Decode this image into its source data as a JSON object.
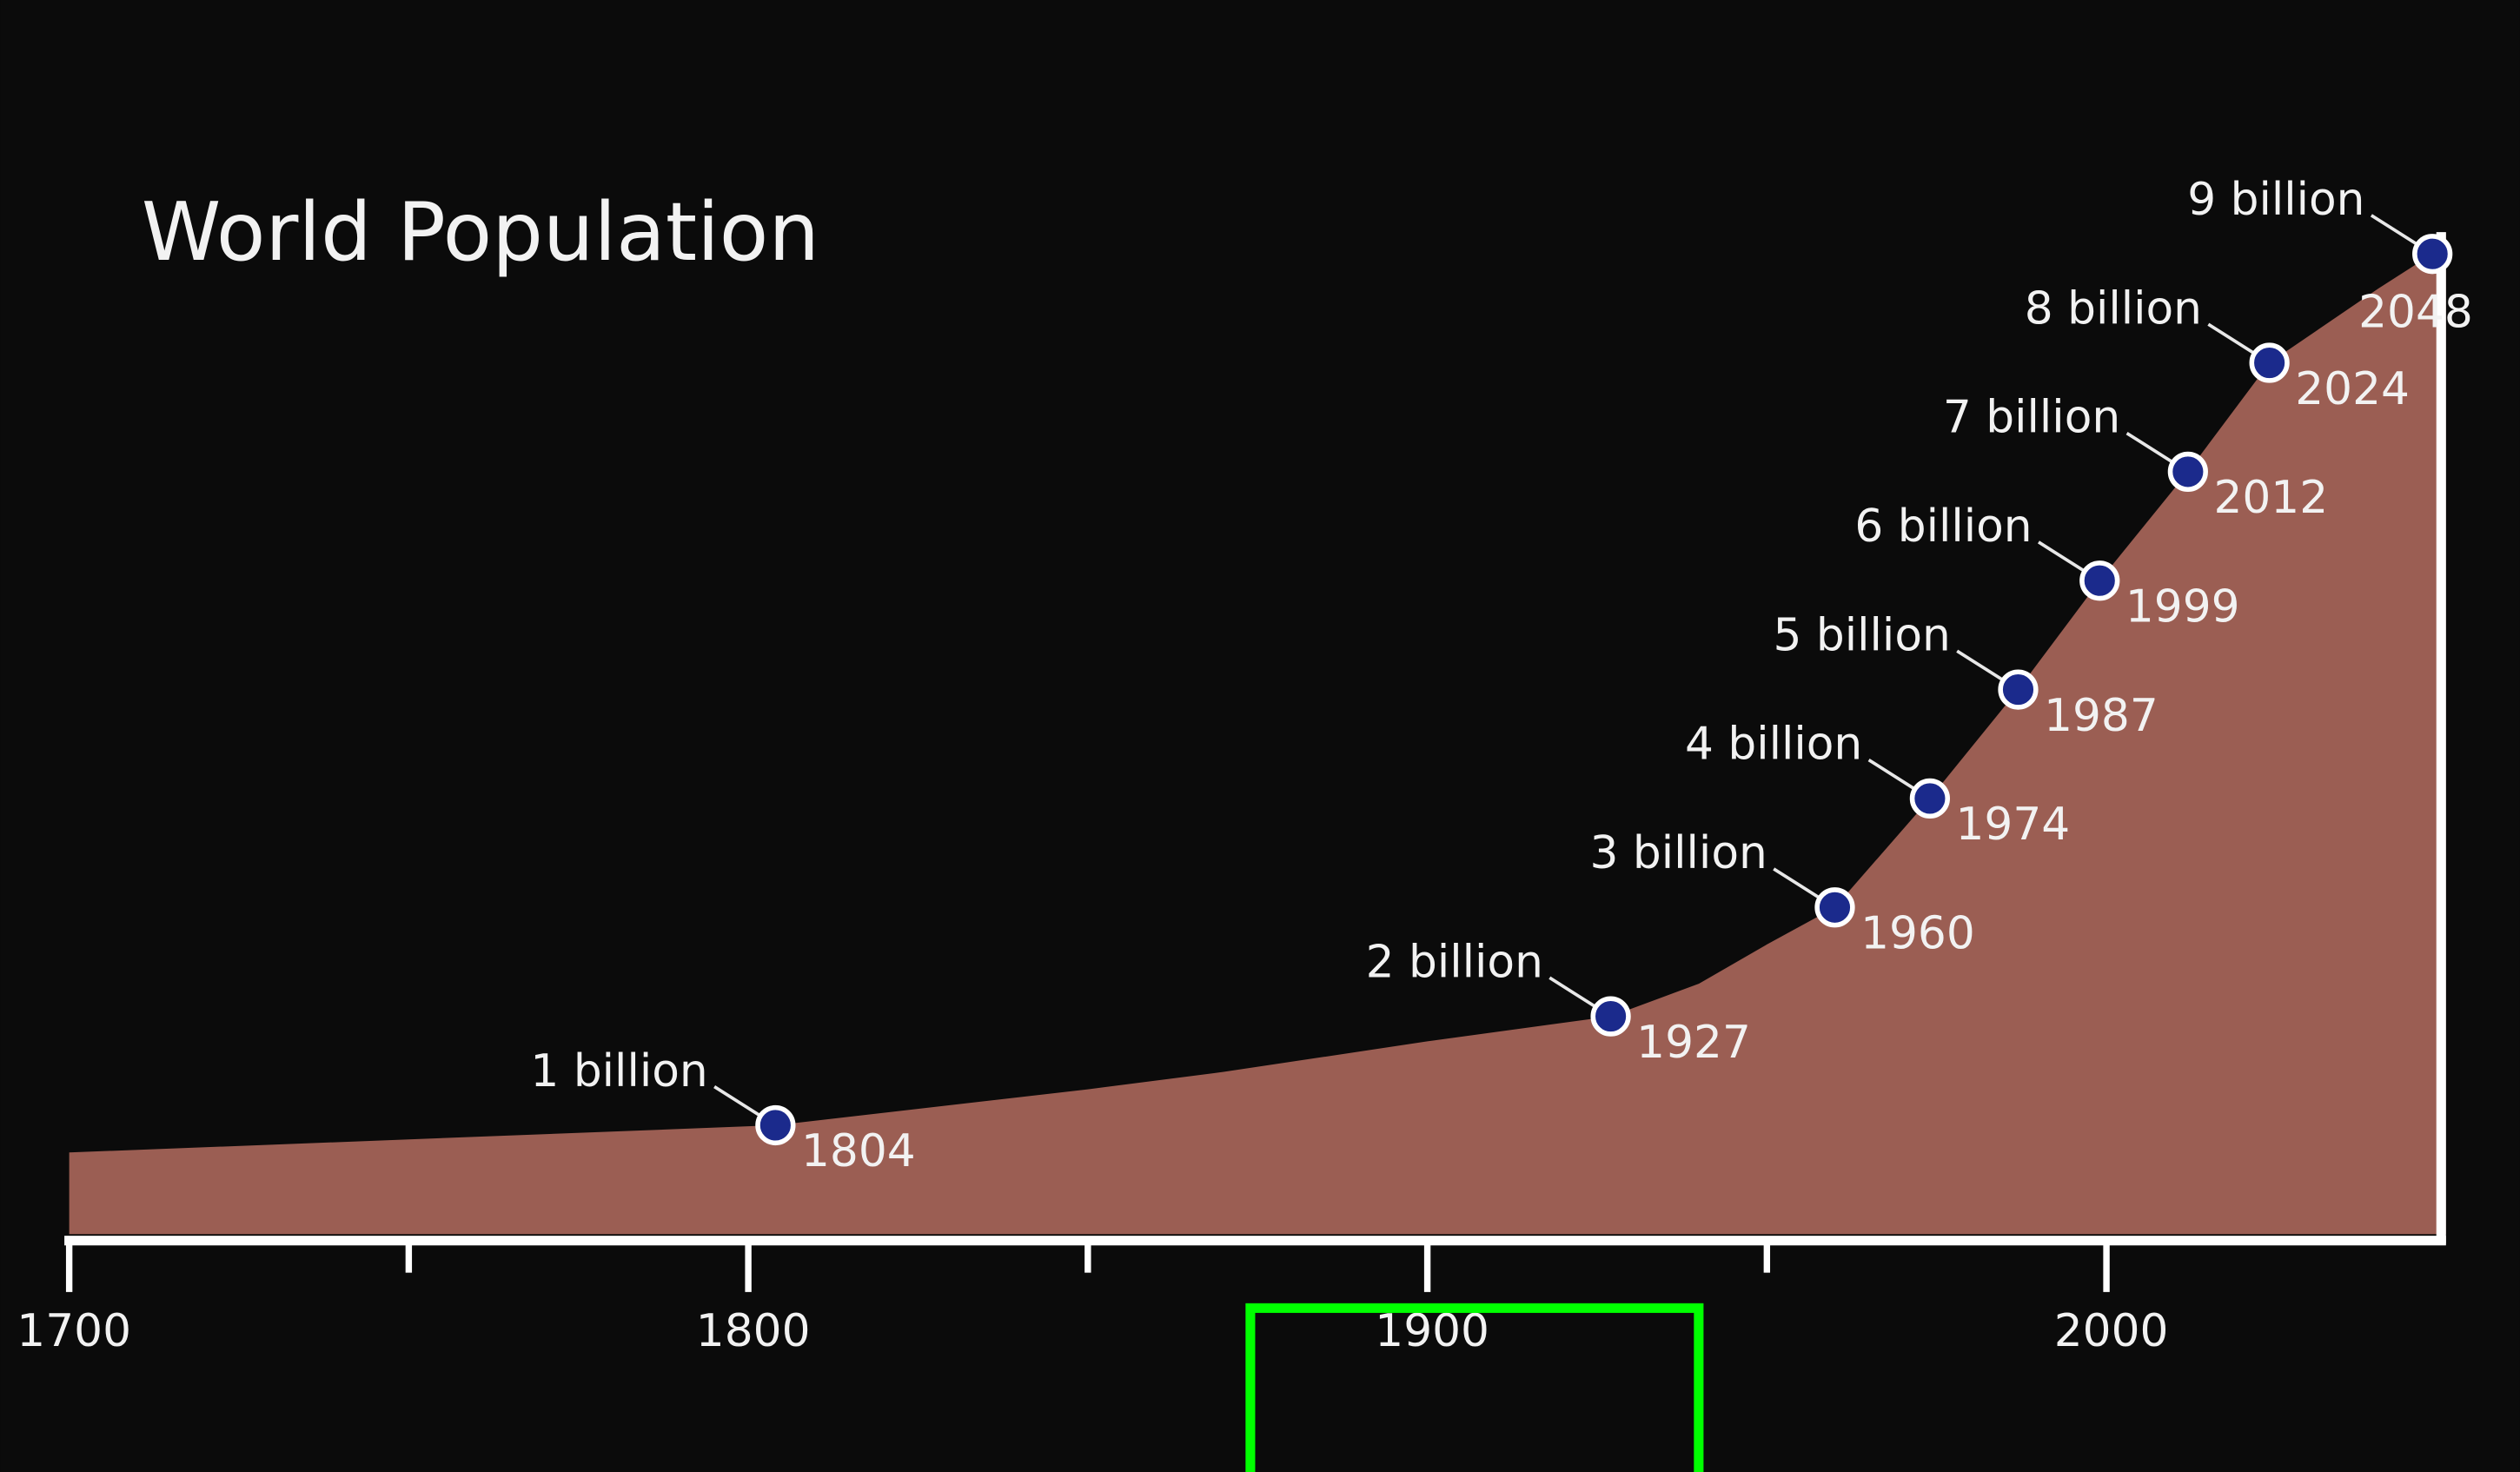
{
  "chart_data": {
    "type": "area",
    "title": "World Population",
    "xlim": [
      1700,
      2050
    ],
    "ylim": [
      0,
      9
    ],
    "xticks": [
      1700,
      1800,
      1900,
      2000
    ],
    "xminorticks": [
      1750,
      1850,
      1950
    ],
    "area": {
      "color": "#9b5e53",
      "x": [
        1700,
        1750,
        1804,
        1850,
        1870,
        1900,
        1927,
        1940,
        1950,
        1960,
        1974,
        1987,
        1999,
        2012,
        2024,
        2040,
        2048,
        2050
      ],
      "values": [
        0.75,
        0.87,
        1,
        1.33,
        1.49,
        1.77,
        2,
        2.3,
        2.66,
        3,
        4,
        5,
        6,
        7,
        8,
        8.68,
        9,
        9.2
      ]
    },
    "milestones": {
      "color": "#1b2a8c",
      "x": [
        1804,
        1927,
        1960,
        1974,
        1987,
        1999,
        2012,
        2024,
        2048
      ],
      "values": [
        1,
        2,
        3,
        4,
        5,
        6,
        7,
        8,
        9
      ],
      "value_labels": [
        "1 billion",
        "2 billion",
        "3 billion",
        "4 billion",
        "5 billion",
        "6 billion",
        "7 billion",
        "8 billion",
        "9 billion"
      ]
    }
  }
}
